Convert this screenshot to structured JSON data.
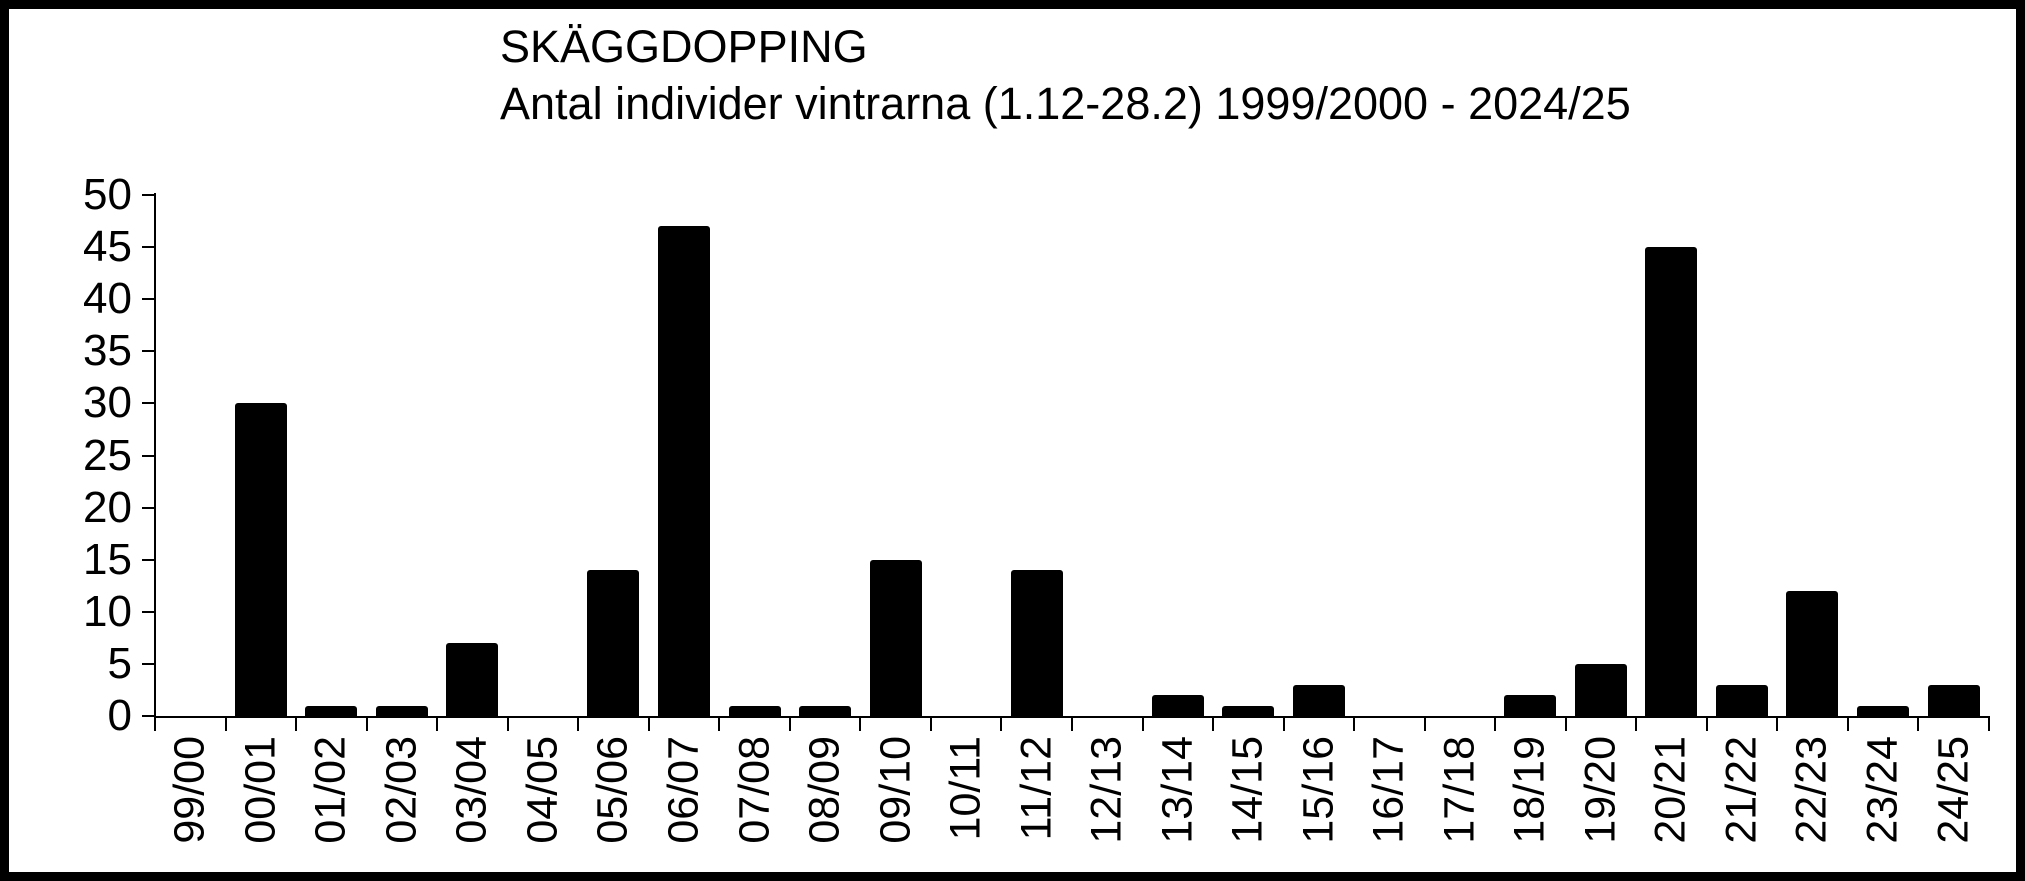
{
  "header": {
    "title": "SKÄGGDOPPING",
    "subtitle": "Antal individer vintrarna (1.12-28.2) 1999/2000 - 2024/25"
  },
  "colors": {
    "bar": "#000000",
    "axis": "#000000",
    "background": "#ffffff",
    "frame": "#000000"
  },
  "chart_data": {
    "type": "bar",
    "title": "SKÄGGDOPPING",
    "subtitle": "Antal individer vintrarna (1.12-28.2) 1999/2000 - 2024/25",
    "categories": [
      "99/00",
      "00/01",
      "01/02",
      "02/03",
      "03/04",
      "04/05",
      "05/06",
      "06/07",
      "07/08",
      "08/09",
      "09/10",
      "10/11",
      "11/12",
      "12/13",
      "13/14",
      "14/15",
      "15/16",
      "16/17",
      "17/18",
      "18/19",
      "19/20",
      "20/21",
      "21/22",
      "22/23",
      "23/24",
      "24/25"
    ],
    "values": [
      0,
      30,
      1,
      1,
      7,
      0,
      14,
      47,
      1,
      1,
      15,
      0,
      14,
      0,
      2,
      1,
      3,
      0,
      0,
      2,
      5,
      45,
      3,
      12,
      1,
      3
    ],
    "xlabel": "",
    "ylabel": "",
    "ylim": [
      0,
      50
    ],
    "ytick_step": 5,
    "ytick_labels": [
      "0",
      "5",
      "10",
      "15",
      "20",
      "25",
      "30",
      "35",
      "40",
      "45",
      "50"
    ],
    "grid": false,
    "legend": "none",
    "bar_color": "#000000",
    "x_label_rotation_deg": -90
  }
}
